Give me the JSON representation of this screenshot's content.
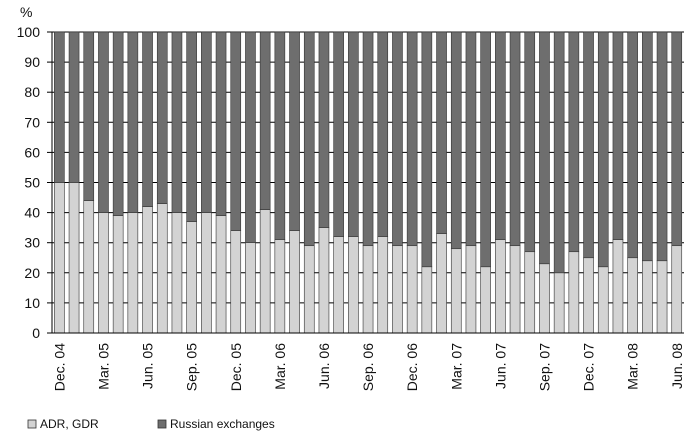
{
  "chart_data": {
    "type": "stacked_bar",
    "y_label": "%",
    "categories": [
      "Dec. 04",
      null,
      null,
      "Mar. 05",
      null,
      null,
      "Jun. 05",
      null,
      null,
      "Sep. 05",
      null,
      null,
      "Dec. 05",
      null,
      null,
      "Mar. 06",
      null,
      null,
      "Jun. 06",
      null,
      null,
      "Sep. 06",
      null,
      null,
      "Dec. 06",
      null,
      null,
      "Mar. 07",
      null,
      null,
      "Jun. 07",
      null,
      null,
      "Sep. 07",
      null,
      null,
      "Dec. 07",
      null,
      null,
      "Mar. 08",
      null,
      null,
      "Jun. 08"
    ],
    "series": [
      {
        "name": "ADR, GDR",
        "color": "#d3d3d3",
        "values": [
          50,
          50,
          44,
          40,
          39,
          40,
          42,
          43,
          40,
          37,
          40,
          39,
          34,
          30,
          41,
          31,
          34,
          29,
          35,
          32,
          32,
          29,
          32,
          29,
          29,
          22,
          33,
          28,
          29,
          22,
          31,
          29,
          27,
          23,
          20,
          27,
          25,
          22,
          31,
          25,
          24,
          24,
          29
        ]
      },
      {
        "name": "Russian exchanges",
        "color": "#6e6e6e",
        "values": [
          50,
          50,
          56,
          60,
          61,
          60,
          58,
          57,
          60,
          63,
          60,
          61,
          66,
          70,
          59,
          69,
          66,
          71,
          65,
          68,
          68,
          71,
          68,
          71,
          71,
          78,
          67,
          72,
          71,
          78,
          69,
          71,
          73,
          77,
          80,
          73,
          75,
          78,
          69,
          75,
          76,
          76,
          71
        ]
      }
    ],
    "ylim": [
      0,
      100
    ],
    "yticks": [
      0,
      10,
      20,
      30,
      40,
      50,
      60,
      70,
      80,
      90,
      100
    ],
    "grid": true,
    "legend": "bottom-left"
  }
}
